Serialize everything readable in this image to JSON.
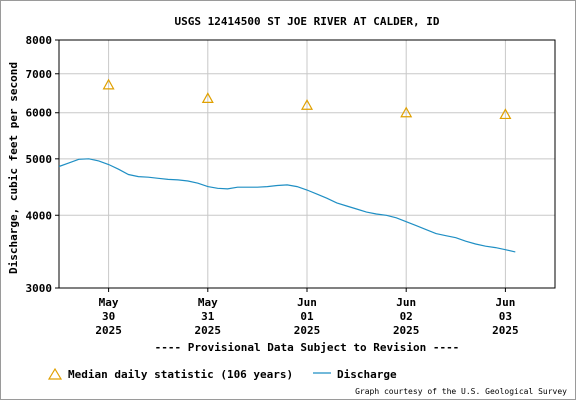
{
  "chart_data": {
    "type": "line",
    "title": "USGS 12414500 ST JOE RIVER AT CALDER, ID",
    "ylabel": "Discharge, cubic feet per second",
    "xlabel": "",
    "yscale": "log",
    "ylim": [
      3000,
      8000
    ],
    "xlim": [
      29.5,
      34.5
    ],
    "yticks": [
      {
        "v": 3000,
        "label": "3000"
      },
      {
        "v": 4000,
        "label": "4000"
      },
      {
        "v": 5000,
        "label": "5000"
      },
      {
        "v": 6000,
        "label": "6000"
      },
      {
        "v": 7000,
        "label": "7000"
      },
      {
        "v": 8000,
        "label": "8000"
      }
    ],
    "xticks": [
      {
        "v": 30,
        "lines": [
          "May",
          "30",
          "2025"
        ]
      },
      {
        "v": 31,
        "lines": [
          "May",
          "31",
          "2025"
        ]
      },
      {
        "v": 32,
        "lines": [
          "Jun",
          "01",
          "2025"
        ]
      },
      {
        "v": 33,
        "lines": [
          "Jun",
          "02",
          "2025"
        ]
      },
      {
        "v": 34,
        "lines": [
          "Jun",
          "03",
          "2025"
        ]
      }
    ],
    "grid": true,
    "series": [
      {
        "name": "Median daily statistic (106 years)",
        "kind": "marker-triangle",
        "color": "#e0a000",
        "x": [
          30,
          31,
          32,
          33,
          34
        ],
        "values": [
          6700,
          6350,
          6180,
          6000,
          5960
        ]
      },
      {
        "name": "Discharge",
        "kind": "line",
        "color": "#1f8fc4",
        "x": [
          29.5,
          29.6,
          29.7,
          29.8,
          29.9,
          30.0,
          30.1,
          30.2,
          30.3,
          30.4,
          30.5,
          30.6,
          30.7,
          30.8,
          30.9,
          31.0,
          31.1,
          31.2,
          31.3,
          31.4,
          31.5,
          31.6,
          31.7,
          31.8,
          31.9,
          32.0,
          32.1,
          32.2,
          32.3,
          32.4,
          32.5,
          32.6,
          32.7,
          32.8,
          32.9,
          33.0,
          33.1,
          33.2,
          33.3,
          33.4,
          33.5,
          33.6,
          33.7,
          33.8,
          33.9,
          34.0,
          34.1
        ],
        "values": [
          4850,
          4920,
          4990,
          5000,
          4960,
          4890,
          4800,
          4700,
          4660,
          4650,
          4630,
          4610,
          4600,
          4580,
          4540,
          4480,
          4450,
          4440,
          4470,
          4470,
          4470,
          4480,
          4500,
          4510,
          4480,
          4420,
          4350,
          4280,
          4200,
          4150,
          4100,
          4050,
          4020,
          4000,
          3960,
          3900,
          3840,
          3780,
          3720,
          3690,
          3660,
          3610,
          3570,
          3540,
          3520,
          3490,
          3460
        ]
      }
    ]
  },
  "footer": {
    "provisional": "---- Provisional Data Subject to Revision ----",
    "provisional_color": "#e00000",
    "credit": "Graph courtesy of the U.S. Geological Survey"
  }
}
